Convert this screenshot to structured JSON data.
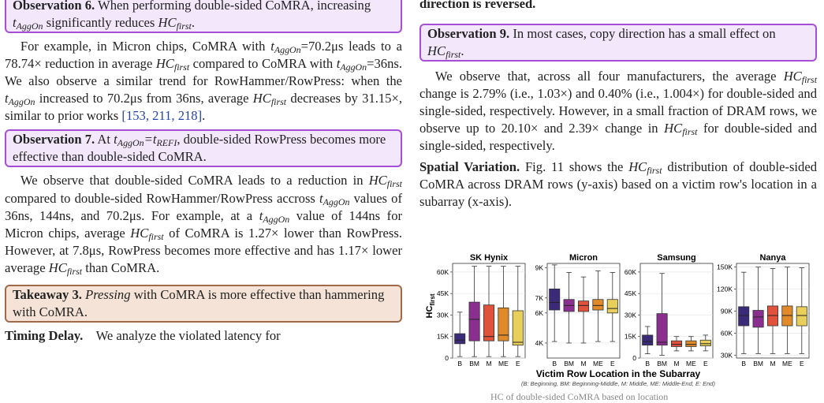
{
  "left": {
    "obs6_prefix": "Observation 6.",
    "obs6_text": "When performing double-sided CoMRA, increasing",
    "obs6_tail": "significantly reduces",
    "p1_a": "For example, in Micron chips, CoMRA with",
    "p1_b": "=70.2μs leads to a 78.74× reduction in average",
    "p1_c": "compared to CoMRA with",
    "p1_d": "=36ns. We also observe a similar trend for RowHammer/RowPress: when the",
    "p1_e": "increased to 70.2μs from 36ns, average",
    "p1_f": "decreases by 31.15×, similar to prior works",
    "p1_cite": "[153, 211, 218]",
    "obs7_prefix": "Observation 7.",
    "obs7_a": "At",
    "obs7_b": ", double-sided RowPress becomes more effective than double-sided CoMRA.",
    "p2_a": "We observe that double-sided CoMRA leads to a reduction in",
    "p2_b": "compared to double-sided RowHammer/RowPress accross",
    "p2_c": "values of 36ns, 144ns, and 70.2μs. For example, at a",
    "p2_d": "value of 144ns for Micron chips, average",
    "p2_e": "of CoMRA is 1.27× lower than RowPress. However, at 7.8μs, RowPress becomes more effective and has 1.17× lower average",
    "p2_f": "than CoMRA.",
    "tk3_prefix": "Takeaway 3.",
    "tk3_em": "Pressing",
    "tk3_text": "with CoMRA is more effective than hammering with CoMRA.",
    "timing_head": "Timing Delay.",
    "timing_text": "We analyze the violated latency for"
  },
  "right": {
    "top_text": "direction is reversed.",
    "obs9_prefix": "Observation 9.",
    "obs9_text": "In most cases, copy direction has a small effect on",
    "p3_a": "We observe that, across all four manufacturers, the average",
    "p3_b": "change is 2.79% (i.e., 1.03×) and 0.40% (i.e., 1.004×) for double-sided and single-sided, respectively. However, in a small fraction of DRAM rows, we observe up to 20.10× and 2.39× change in",
    "p3_c": "for double-sided and single-sided, respectively.",
    "spatial_head": "Spatial Variation.",
    "spatial_a": "Fig. 11 shows the",
    "spatial_b": "distribution of double-sided CoMRA across DRAM rows (y-axis) based on a victim row's location in a subarray (x-axis).",
    "caption_partial": "HC    of double-sided CoMRA based on location"
  },
  "math": {
    "hc": "HC",
    "first": "first",
    "t": "t",
    "aggon": "AggOn",
    "refi": "REFI"
  },
  "chart_data": {
    "type": "box",
    "ylabel": "HC",
    "ylabel_sub": "first",
    "xlabel": "Victim Row Location in the Subarray",
    "xnote": "(B: Beginning, BM: Beginning-Middle, M: Middle, ME: Middle-End, E: End)",
    "categories": [
      "B",
      "BM",
      "M",
      "ME",
      "E"
    ],
    "colors": [
      "#3b2a7a",
      "#8a2f8f",
      "#e0523c",
      "#e08a2a",
      "#e8cf5a"
    ],
    "panels": [
      {
        "name": "SK Hynix",
        "ylim": [
          0,
          66000
        ],
        "ticks": [
          [
            0,
            "0"
          ],
          [
            15000,
            "15K"
          ],
          [
            30000,
            "30K"
          ],
          [
            45000,
            "45K"
          ],
          [
            60000,
            "60K"
          ]
        ],
        "boxes": [
          {
            "lo": 1000,
            "q1": 10000,
            "med": 12500,
            "q3": 17000,
            "hi": 32000
          },
          {
            "lo": 1000,
            "q1": 12000,
            "med": 27000,
            "q3": 39000,
            "hi": 64000
          },
          {
            "lo": 1000,
            "q1": 12000,
            "med": 15000,
            "q3": 37000,
            "hi": 64000
          },
          {
            "lo": 1000,
            "q1": 12000,
            "med": 16000,
            "q3": 35000,
            "hi": 64000
          },
          {
            "lo": 1000,
            "q1": 9000,
            "med": 11000,
            "q3": 33000,
            "hi": 64000
          }
        ]
      },
      {
        "name": "Micron",
        "ylim": [
          3000,
          9300
        ],
        "ticks": [
          [
            4000,
            "4K"
          ],
          [
            6000,
            "6K"
          ],
          [
            7000,
            "7K"
          ],
          [
            9000,
            "9K"
          ]
        ],
        "boxes": [
          {
            "lo": 4100,
            "q1": 6200,
            "med": 6700,
            "q3": 7600,
            "hi": 9200
          },
          {
            "lo": 4000,
            "q1": 6100,
            "med": 6500,
            "q3": 6900,
            "hi": 8700
          },
          {
            "lo": 4000,
            "q1": 6100,
            "med": 6500,
            "q3": 6800,
            "hi": 8400
          },
          {
            "lo": 4100,
            "q1": 6200,
            "med": 6500,
            "q3": 6900,
            "hi": 8800
          },
          {
            "lo": 4100,
            "q1": 6000,
            "med": 6300,
            "q3": 6900,
            "hi": 8700
          }
        ]
      },
      {
        "name": "Samsung",
        "ylim": [
          0,
          66000
        ],
        "ticks": [
          [
            0,
            "0"
          ],
          [
            15000,
            "15K"
          ],
          [
            30000,
            "30K"
          ],
          [
            45000,
            "45K"
          ],
          [
            60000,
            "60K"
          ]
        ],
        "boxes": [
          {
            "lo": 3000,
            "q1": 9000,
            "med": 11500,
            "q3": 16000,
            "hi": 22000
          },
          {
            "lo": 2000,
            "q1": 9000,
            "med": 11000,
            "q3": 31000,
            "hi": 59000
          },
          {
            "lo": 5000,
            "q1": 8000,
            "med": 9500,
            "q3": 12000,
            "hi": 15000
          },
          {
            "lo": 5000,
            "q1": 8000,
            "med": 9500,
            "q3": 12000,
            "hi": 15000
          },
          {
            "lo": 5000,
            "q1": 8500,
            "med": 10000,
            "q3": 12500,
            "hi": 16000
          }
        ]
      },
      {
        "name": "Nanya",
        "ylim": [
          26000,
          155000
        ],
        "ticks": [
          [
            30000,
            "30K"
          ],
          [
            60000,
            "60K"
          ],
          [
            90000,
            "90K"
          ],
          [
            120000,
            "120K"
          ],
          [
            150000,
            "150K"
          ]
        ],
        "boxes": [
          {
            "lo": 32000,
            "q1": 70000,
            "med": 84000,
            "q3": 96000,
            "hi": 143000
          },
          {
            "lo": 32000,
            "q1": 68000,
            "med": 82000,
            "q3": 91000,
            "hi": 150000
          },
          {
            "lo": 32000,
            "q1": 70000,
            "med": 84000,
            "q3": 97000,
            "hi": 148000
          },
          {
            "lo": 32000,
            "q1": 70000,
            "med": 84000,
            "q3": 97000,
            "hi": 150000
          },
          {
            "lo": 32000,
            "q1": 70000,
            "med": 84000,
            "q3": 96000,
            "hi": 149000
          }
        ]
      }
    ]
  }
}
